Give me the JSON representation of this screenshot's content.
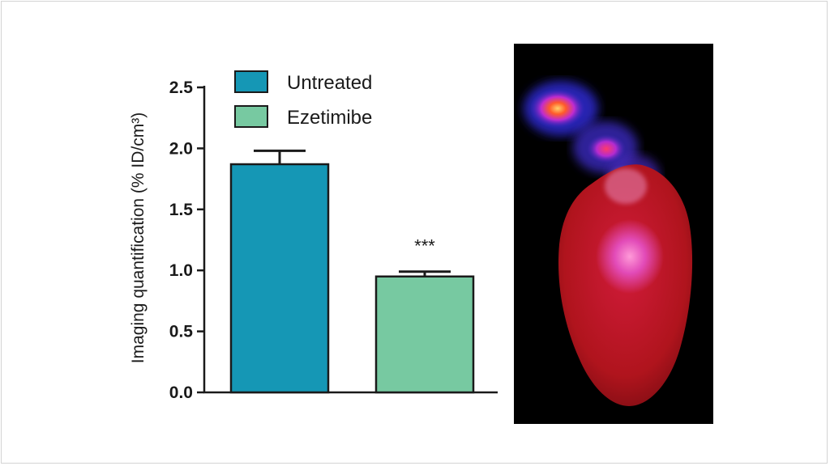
{
  "chart_data": {
    "type": "bar",
    "categories": [
      "Untreated",
      "Ezetimibe"
    ],
    "values": [
      1.87,
      0.95
    ],
    "errors": [
      0.11,
      0.04
    ],
    "colors": [
      "#1597b5",
      "#77c9a1"
    ],
    "ylabel": "Imaging quantification (% ID/cm³)",
    "xlabel": "",
    "ylim": [
      0,
      2.5
    ],
    "yticks": [
      0.0,
      0.5,
      1.0,
      1.5,
      2.0,
      2.5
    ],
    "ytick_labels": [
      "0.0",
      "0.5",
      "1.0",
      "1.5",
      "2.0",
      "2.5"
    ],
    "legend": {
      "position": "top",
      "entries": [
        "Untreated",
        "Ezetimibe"
      ]
    },
    "annotations": [
      {
        "category": "Ezetimibe",
        "text": "***"
      }
    ],
    "grid": false
  },
  "image_panel": {
    "subject": "heart-pet-ct-image",
    "background": "#000000"
  }
}
